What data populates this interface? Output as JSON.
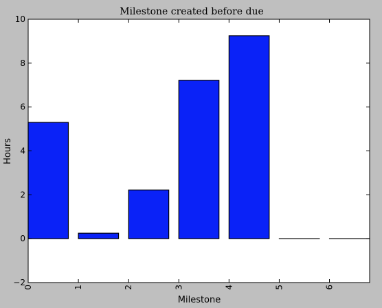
{
  "chart_data": {
    "type": "bar",
    "title": "Milestone created before due",
    "xlabel": "Milestone",
    "ylabel": "Hours",
    "categories": [
      "0",
      "1",
      "2",
      "3",
      "4",
      "5",
      "6"
    ],
    "values": [
      5.3,
      0.25,
      2.22,
      7.22,
      9.25,
      0.0,
      0.0
    ],
    "bar_width": 0.8,
    "xlim": [
      0,
      6.8
    ],
    "ylim": [
      -2,
      10
    ],
    "x_ticks": [
      "0",
      "1",
      "2",
      "3",
      "4",
      "5",
      "6"
    ],
    "x_tick_rotation": 90,
    "y_ticks": [
      "−2",
      "0",
      "2",
      "4",
      "6",
      "8",
      "10"
    ],
    "grid": false,
    "colors": {
      "bar_fill": "#0a22f7",
      "bar_edge": "#000000",
      "plot_bg": "#ffffff",
      "figure_bg": "#bfbfbf"
    }
  }
}
